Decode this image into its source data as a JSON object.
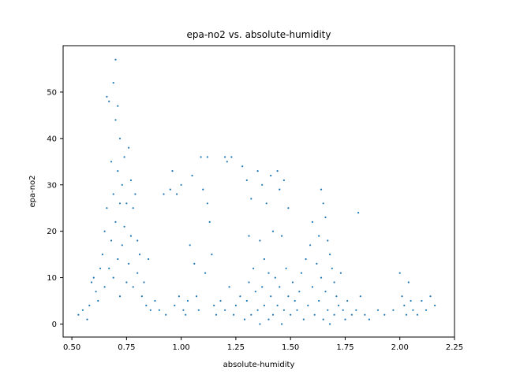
{
  "chart_data": {
    "type": "scatter",
    "title": "epa-no2 vs. absolute-humidity",
    "xlabel": "absolute-humidity",
    "ylabel": "epa-no2",
    "xlim": [
      0.46,
      2.25
    ],
    "ylim": [
      -2.8,
      60
    ],
    "x_ticks": [
      0.5,
      0.75,
      1.0,
      1.25,
      1.5,
      1.75,
      2.0,
      2.25
    ],
    "x_tick_labels": [
      "0.50",
      "0.75",
      "1.00",
      "1.25",
      "1.50",
      "1.75",
      "2.00",
      "2.25"
    ],
    "y_ticks": [
      0,
      10,
      20,
      30,
      40,
      50
    ],
    "y_tick_labels": [
      "0",
      "10",
      "20",
      "30",
      "40",
      "50"
    ],
    "grid": false,
    "marker_color": "#1f77b4",
    "series": [
      {
        "points": [
          [
            0.53,
            2
          ],
          [
            0.55,
            3
          ],
          [
            0.57,
            1
          ],
          [
            0.58,
            4
          ],
          [
            0.59,
            9
          ],
          [
            0.6,
            10
          ],
          [
            0.61,
            7
          ],
          [
            0.62,
            5
          ],
          [
            0.63,
            12
          ],
          [
            0.64,
            15
          ],
          [
            0.65,
            20
          ],
          [
            0.65,
            8
          ],
          [
            0.66,
            25
          ],
          [
            0.66,
            49
          ],
          [
            0.67,
            48
          ],
          [
            0.67,
            12
          ],
          [
            0.68,
            35
          ],
          [
            0.68,
            18
          ],
          [
            0.69,
            52
          ],
          [
            0.69,
            28
          ],
          [
            0.69,
            10
          ],
          [
            0.7,
            57
          ],
          [
            0.7,
            44
          ],
          [
            0.7,
            22
          ],
          [
            0.71,
            47
          ],
          [
            0.71,
            33
          ],
          [
            0.71,
            14
          ],
          [
            0.72,
            40
          ],
          [
            0.72,
            26
          ],
          [
            0.72,
            6
          ],
          [
            0.73,
            30
          ],
          [
            0.73,
            17
          ],
          [
            0.74,
            36
          ],
          [
            0.74,
            21
          ],
          [
            0.75,
            26
          ],
          [
            0.75,
            9
          ],
          [
            0.76,
            38
          ],
          [
            0.76,
            13
          ],
          [
            0.77,
            31
          ],
          [
            0.77,
            19
          ],
          [
            0.78,
            25
          ],
          [
            0.78,
            8
          ],
          [
            0.79,
            28
          ],
          [
            0.8,
            18
          ],
          [
            0.8,
            11
          ],
          [
            0.81,
            15
          ],
          [
            0.82,
            6
          ],
          [
            0.83,
            9
          ],
          [
            0.84,
            4
          ],
          [
            0.85,
            14
          ],
          [
            0.86,
            3
          ],
          [
            0.88,
            5
          ],
          [
            0.9,
            3
          ],
          [
            0.92,
            28
          ],
          [
            0.93,
            2
          ],
          [
            0.95,
            29
          ],
          [
            0.96,
            33
          ],
          [
            0.97,
            4
          ],
          [
            0.98,
            28
          ],
          [
            0.99,
            6
          ],
          [
            1.0,
            30
          ],
          [
            1.01,
            3
          ],
          [
            1.02,
            2
          ],
          [
            1.03,
            5
          ],
          [
            1.04,
            17
          ],
          [
            1.05,
            32
          ],
          [
            1.06,
            13
          ],
          [
            1.07,
            6
          ],
          [
            1.08,
            3
          ],
          [
            1.09,
            36
          ],
          [
            1.1,
            29
          ],
          [
            1.11,
            11
          ],
          [
            1.12,
            26
          ],
          [
            1.12,
            36
          ],
          [
            1.13,
            22
          ],
          [
            1.14,
            15
          ],
          [
            1.15,
            4
          ],
          [
            1.16,
            2
          ],
          [
            1.18,
            5
          ],
          [
            1.2,
            36
          ],
          [
            1.2,
            3
          ],
          [
            1.21,
            35
          ],
          [
            1.22,
            8
          ],
          [
            1.23,
            36
          ],
          [
            1.24,
            2
          ],
          [
            1.25,
            4
          ],
          [
            1.27,
            6
          ],
          [
            1.28,
            34
          ],
          [
            1.29,
            1
          ],
          [
            1.3,
            31
          ],
          [
            1.3,
            5
          ],
          [
            1.31,
            19
          ],
          [
            1.31,
            9
          ],
          [
            1.32,
            27
          ],
          [
            1.32,
            2
          ],
          [
            1.33,
            12
          ],
          [
            1.34,
            7
          ],
          [
            1.35,
            33
          ],
          [
            1.35,
            3
          ],
          [
            1.36,
            18
          ],
          [
            1.36,
            0
          ],
          [
            1.37,
            30
          ],
          [
            1.37,
            8
          ],
          [
            1.38,
            14
          ],
          [
            1.38,
            4
          ],
          [
            1.39,
            26
          ],
          [
            1.4,
            11
          ],
          [
            1.4,
            1
          ],
          [
            1.41,
            32
          ],
          [
            1.41,
            6
          ],
          [
            1.42,
            20
          ],
          [
            1.42,
            2
          ],
          [
            1.43,
            10
          ],
          [
            1.44,
            33
          ],
          [
            1.44,
            4
          ],
          [
            1.45,
            29
          ],
          [
            1.45,
            8
          ],
          [
            1.46,
            19
          ],
          [
            1.46,
            0
          ],
          [
            1.47,
            31
          ],
          [
            1.47,
            3
          ],
          [
            1.48,
            12
          ],
          [
            1.49,
            25
          ],
          [
            1.49,
            6
          ],
          [
            1.5,
            2
          ],
          [
            1.51,
            9
          ],
          [
            1.52,
            5
          ],
          [
            1.53,
            3
          ],
          [
            1.54,
            7
          ],
          [
            1.55,
            11
          ],
          [
            1.56,
            1
          ],
          [
            1.57,
            14
          ],
          [
            1.58,
            4
          ],
          [
            1.59,
            17
          ],
          [
            1.6,
            8
          ],
          [
            1.6,
            22
          ],
          [
            1.61,
            2
          ],
          [
            1.62,
            13
          ],
          [
            1.63,
            19
          ],
          [
            1.63,
            5
          ],
          [
            1.64,
            29
          ],
          [
            1.64,
            10
          ],
          [
            1.65,
            26
          ],
          [
            1.65,
            1
          ],
          [
            1.66,
            23
          ],
          [
            1.66,
            7
          ],
          [
            1.67,
            18
          ],
          [
            1.67,
            3
          ],
          [
            1.68,
            15
          ],
          [
            1.68,
            0
          ],
          [
            1.69,
            12
          ],
          [
            1.7,
            9
          ],
          [
            1.7,
            2
          ],
          [
            1.71,
            6
          ],
          [
            1.72,
            4
          ],
          [
            1.73,
            11
          ],
          [
            1.74,
            3
          ],
          [
            1.75,
            1
          ],
          [
            1.76,
            5
          ],
          [
            1.78,
            2
          ],
          [
            1.8,
            3
          ],
          [
            1.81,
            24
          ],
          [
            1.82,
            6
          ],
          [
            1.84,
            2
          ],
          [
            1.86,
            1
          ],
          [
            1.9,
            3
          ],
          [
            1.93,
            2
          ],
          [
            1.97,
            3
          ],
          [
            2.0,
            11
          ],
          [
            2.01,
            6
          ],
          [
            2.02,
            4
          ],
          [
            2.03,
            2
          ],
          [
            2.04,
            9
          ],
          [
            2.05,
            5
          ],
          [
            2.06,
            3
          ],
          [
            2.08,
            2
          ],
          [
            2.1,
            5
          ],
          [
            2.12,
            3
          ],
          [
            2.14,
            6
          ],
          [
            2.16,
            4
          ]
        ]
      }
    ]
  }
}
